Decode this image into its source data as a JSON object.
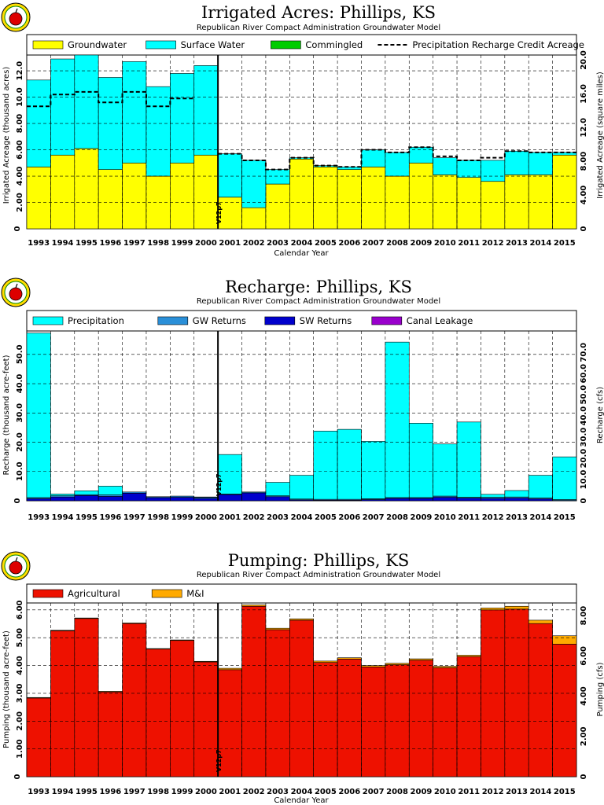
{
  "chart_data": [
    {
      "type": "bar",
      "stacked": true,
      "title": "Irrigated Acres: Phillips, KS",
      "subtitle": "Republican River Compact Administration Groundwater Model",
      "xlabel": "Calendar Year",
      "ylabel": "Irrigated Acreage (thousand acres)",
      "y2label": "Irrigated Acreage (square miles)",
      "ylim": [
        0,
        13.2
      ],
      "y2lim": [
        0,
        20.6
      ],
      "yticks": [
        "2.00",
        "4.00",
        "6.00",
        "8.00",
        "10.0",
        "12.0"
      ],
      "y2ticks": [
        "4.00",
        "8.00",
        "12.0",
        "16.0",
        "20.0"
      ],
      "grid": true,
      "legend_position": "top",
      "categories": [
        "1993",
        "1994",
        "1995",
        "1996",
        "1997",
        "1998",
        "1999",
        "2000",
        "2001",
        "2002",
        "2003",
        "2004",
        "2005",
        "2006",
        "2007",
        "2008",
        "2009",
        "2010",
        "2011",
        "2012",
        "2013",
        "2014",
        "2015"
      ],
      "series": [
        {
          "name": "Groundwater",
          "color": "#ffff00",
          "values": [
            4.7,
            5.6,
            6.1,
            4.5,
            5.0,
            4.0,
            5.0,
            5.6,
            2.4,
            1.6,
            3.4,
            5.3,
            4.7,
            4.5,
            4.7,
            4.0,
            5.0,
            4.1,
            3.9,
            3.6,
            4.1,
            4.1,
            5.6
          ]
        },
        {
          "name": "Surface Water",
          "color": "#00ffff",
          "values": [
            6.6,
            7.3,
            7.1,
            7.0,
            7.7,
            6.8,
            6.8,
            6.8,
            3.3,
            3.6,
            1.1,
            0.1,
            0.1,
            0.2,
            1.3,
            1.8,
            1.2,
            1.3,
            1.3,
            1.6,
            1.8,
            1.7,
            0.2
          ]
        },
        {
          "name": "Commingled",
          "color": "#00cc00",
          "values": [
            0,
            0,
            0,
            0,
            0,
            0,
            0,
            0,
            0,
            0,
            0,
            0,
            0,
            0,
            0,
            0,
            0,
            0,
            0,
            0,
            0,
            0,
            0
          ]
        }
      ],
      "line_series": {
        "name": "Precipitation Recharge Credit Acreage",
        "style": "dashed",
        "values": [
          9.3,
          10.2,
          10.4,
          9.6,
          10.4,
          9.3,
          9.9,
          null,
          5.7,
          5.2,
          4.5,
          5.4,
          4.8,
          4.7,
          6.0,
          5.8,
          6.2,
          5.5,
          5.2,
          5.4,
          5.9,
          5.8,
          5.8
        ]
      },
      "vline": {
        "label": "V12p7",
        "after": "2000"
      }
    },
    {
      "type": "bar",
      "stacked": true,
      "title": "Recharge: Phillips, KS",
      "subtitle": "Republican River Compact Administration Groundwater Model",
      "xlabel": "",
      "ylabel": "Recharge (thousand acre-feet)",
      "y2label": "Recharge (cfs)",
      "ylim": [
        0,
        58
      ],
      "y2lim": [
        0,
        80.1
      ],
      "yticks": [
        "10.0",
        "20.0",
        "30.0",
        "40.0",
        "50.0"
      ],
      "y2ticks": [
        "10.0",
        "20.0",
        "30.0",
        "40.0",
        "50.0",
        "60.0",
        "70.0"
      ],
      "grid": true,
      "legend_position": "top",
      "categories": [
        "1993",
        "1994",
        "1995",
        "1996",
        "1997",
        "1998",
        "1999",
        "2000",
        "2001",
        "2002",
        "2003",
        "2004",
        "2005",
        "2006",
        "2007",
        "2008",
        "2009",
        "2010",
        "2011",
        "2012",
        "2013",
        "2014",
        "2015"
      ],
      "series": [
        {
          "name": "SW Returns",
          "color": "#0000cc",
          "values": [
            0.7,
            1.3,
            1.8,
            1.5,
            2.6,
            1.1,
            1.2,
            0.8,
            2.1,
            2.7,
            1.4,
            0.3,
            0.2,
            0.2,
            0.4,
            0.8,
            0.8,
            1.2,
            0.9,
            0.8,
            0.9,
            0.6,
            0.1
          ]
        },
        {
          "name": "GW Returns",
          "color": "#2a8fd8",
          "values": [
            0.4,
            0.4,
            0.3,
            0.5,
            0.4,
            0.3,
            0.4,
            0.4,
            0.2,
            0.3,
            0.3,
            0.3,
            0.3,
            0.3,
            0.3,
            0.3,
            0.3,
            0.4,
            0.3,
            0.4,
            0.4,
            0.4,
            0.3
          ]
        },
        {
          "name": "Precipitation",
          "color": "#00ffff",
          "values": [
            56.2,
            0.6,
            1.3,
            3.0,
            0,
            0,
            0,
            0.1,
            13.5,
            0,
            4.6,
            8.1,
            23.3,
            23.9,
            19.6,
            53.1,
            25.4,
            17.8,
            25.7,
            1.0,
            2.2,
            7.7,
            14.6
          ]
        },
        {
          "name": "Canal Leakage",
          "color": "#9900cc",
          "values": [
            0,
            0,
            0,
            0,
            0,
            0,
            0,
            0,
            0,
            0,
            0,
            0,
            0,
            0,
            0,
            0,
            0,
            0,
            0,
            0,
            0,
            0,
            0
          ]
        }
      ],
      "vline": {
        "label": "V12p7",
        "after": "2000"
      }
    },
    {
      "type": "bar",
      "stacked": true,
      "title": "Pumping: Phillips, KS",
      "subtitle": "Republican River Compact Administration Groundwater Model",
      "xlabel": "Calendar Year",
      "ylabel": "Pumping (thousand acre-feet)",
      "y2label": "Pumping (cfs)",
      "ylim": [
        0,
        6.25
      ],
      "y2lim": [
        0,
        8.63
      ],
      "yticks": [
        "1.00",
        "2.00",
        "3.00",
        "4.00",
        "5.00",
        "6.00"
      ],
      "y2ticks": [
        "2.00",
        "4.00",
        "6.00",
        "8.00"
      ],
      "grid": true,
      "legend_position": "top",
      "categories": [
        "1993",
        "1994",
        "1995",
        "1996",
        "1997",
        "1998",
        "1999",
        "2000",
        "2001",
        "2002",
        "2003",
        "2004",
        "2005",
        "2006",
        "2007",
        "2008",
        "2009",
        "2010",
        "2011",
        "2012",
        "2013",
        "2014",
        "2015"
      ],
      "series": [
        {
          "name": "Agricultural",
          "color": "#ee1100",
          "values": [
            2.83,
            5.25,
            5.69,
            3.05,
            5.51,
            4.59,
            4.9,
            4.13,
            3.85,
            6.13,
            5.29,
            5.63,
            4.11,
            4.23,
            3.95,
            4.03,
            4.19,
            3.92,
            4.32,
            6.0,
            6.03,
            5.51,
            4.77
          ]
        },
        {
          "name": "M&I",
          "color": "#ffaa00",
          "values": [
            0.02,
            0.02,
            0.02,
            0.02,
            0.02,
            0.02,
            0.02,
            0.02,
            0.05,
            0.05,
            0.05,
            0.05,
            0.05,
            0.05,
            0.05,
            0.05,
            0.05,
            0.05,
            0.05,
            0.07,
            0.1,
            0.12,
            0.3
          ]
        }
      ],
      "vline": {
        "label": "V12p7",
        "after": "2000"
      }
    }
  ]
}
